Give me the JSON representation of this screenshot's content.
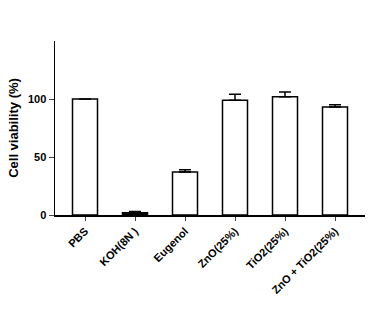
{
  "chart_data": {
    "type": "bar",
    "y_label": "Cell viability (%)",
    "categories": [
      "PBS",
      "KOH(8N )",
      "Eugenol",
      "ZnO(25%)",
      "TiO2(25%)",
      "ZnO + TiO2(25%)"
    ],
    "values": [
      100,
      2,
      37,
      99,
      102,
      93
    ],
    "errors": [
      0,
      1,
      2,
      5,
      4,
      2
    ],
    "colors": [
      "#ffffff",
      "#111111",
      "#ffffff",
      "#ffffff",
      "#ffffff",
      "#ffffff"
    ],
    "ylim": [
      0,
      150
    ],
    "yticks": [
      0,
      50,
      100
    ],
    "grid": false
  }
}
